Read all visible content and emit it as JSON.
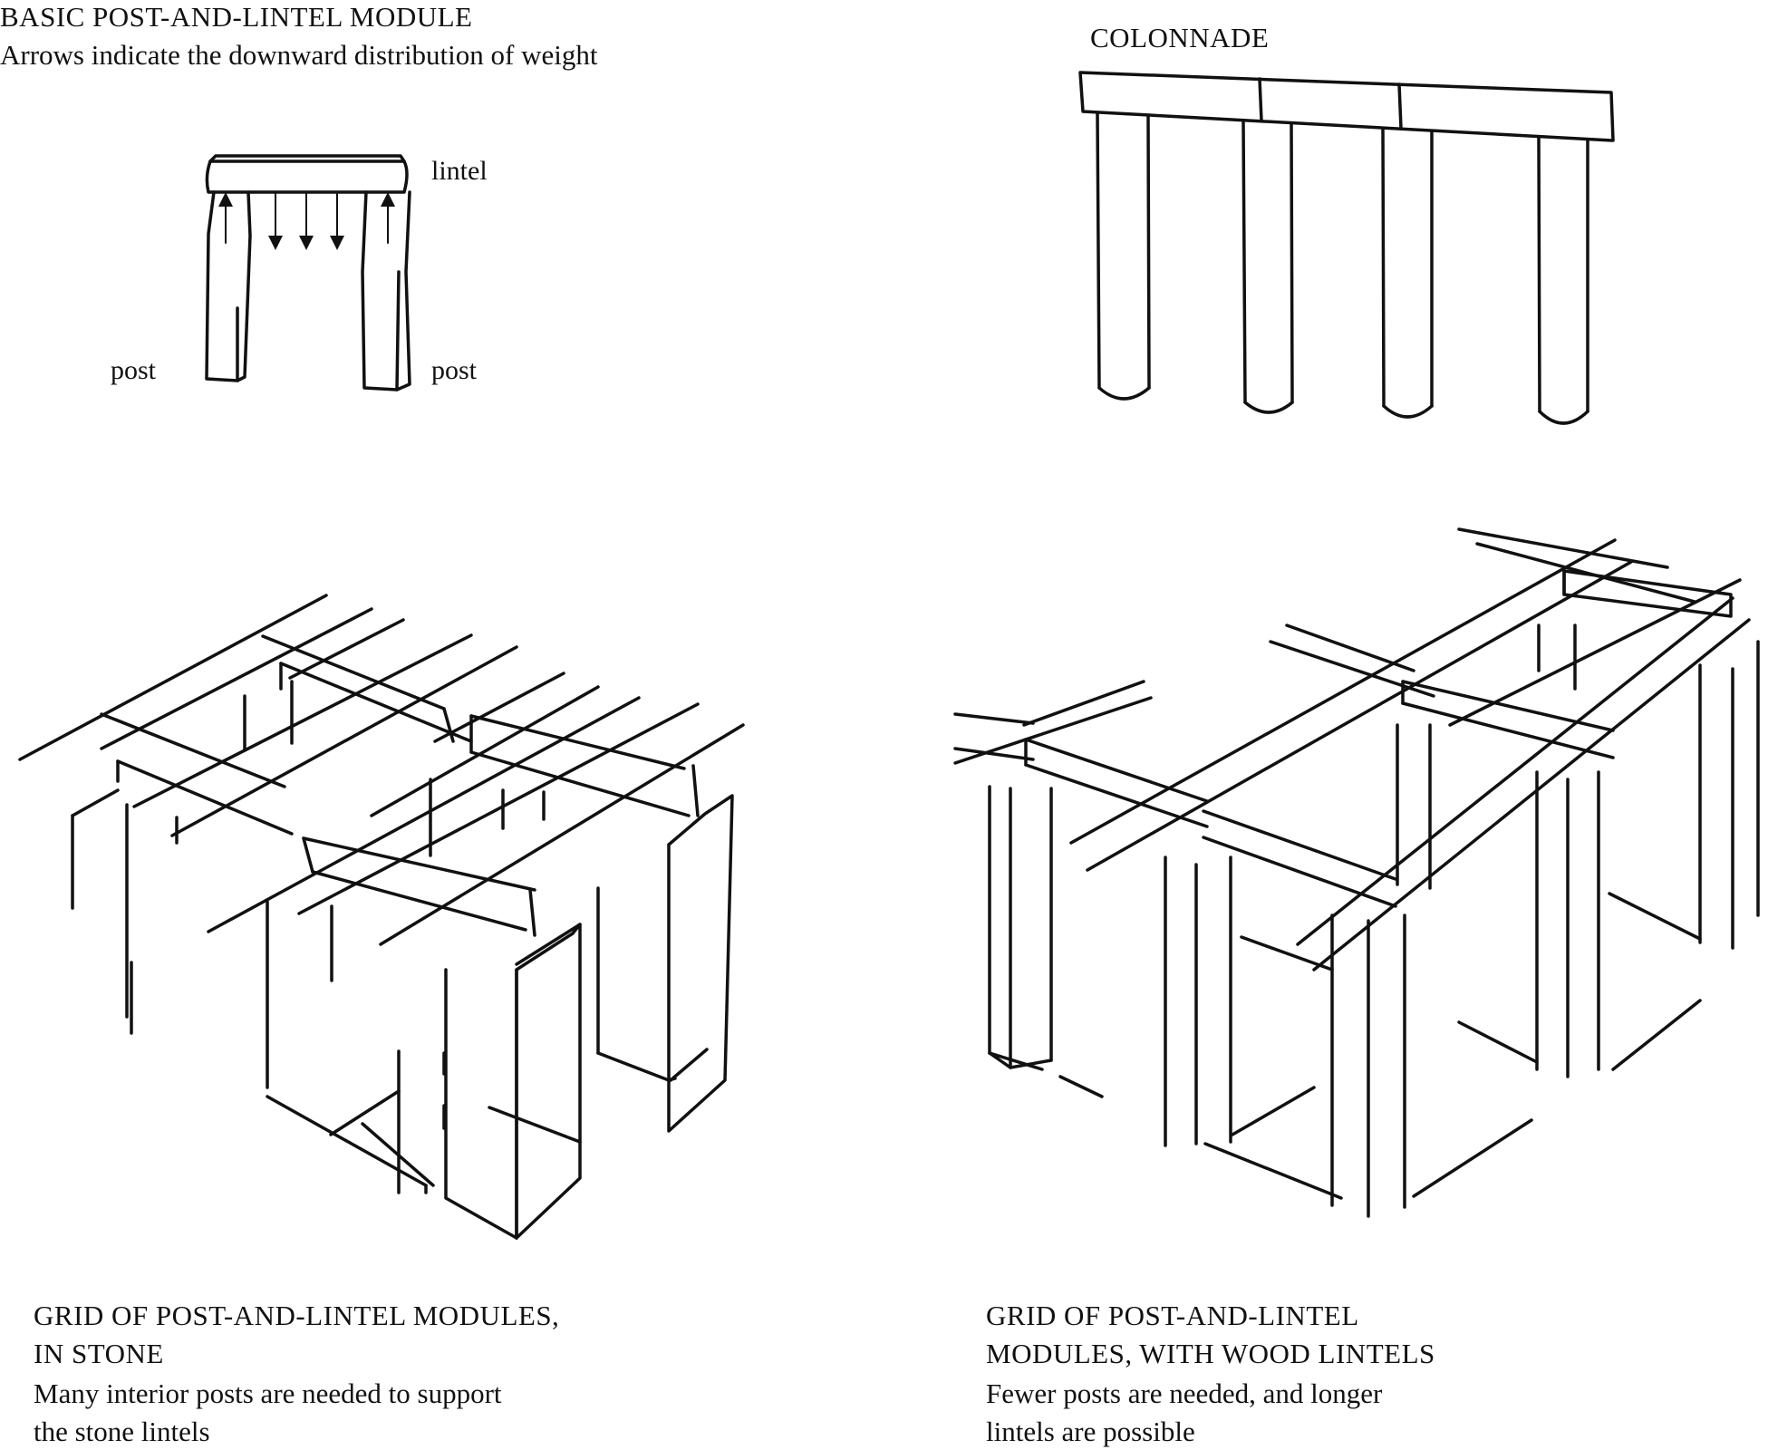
{
  "panels": {
    "basic": {
      "title": "BASIC POST-AND-LINTEL MODULE",
      "subtitle": "Arrows indicate the downward distribution of weight",
      "labels": {
        "lintel": "lintel",
        "post_left": "post",
        "post_right": "post"
      }
    },
    "colonnade": {
      "title": "COLONNADE"
    },
    "stone_grid": {
      "title_line1": "GRID OF POST-AND-LINTEL MODULES,",
      "title_line2": "IN STONE",
      "caption_line1": "Many interior posts are needed to support",
      "caption_line2": "the stone lintels"
    },
    "wood_grid": {
      "title_line1": "GRID OF POST-AND-LINTEL",
      "title_line2": "MODULES, WITH WOOD LINTELS",
      "caption_line1": "Fewer posts are needed, and longer",
      "caption_line2": "lintels are possible"
    }
  },
  "colors": {
    "ink": "#111111",
    "background": "#ffffff"
  }
}
